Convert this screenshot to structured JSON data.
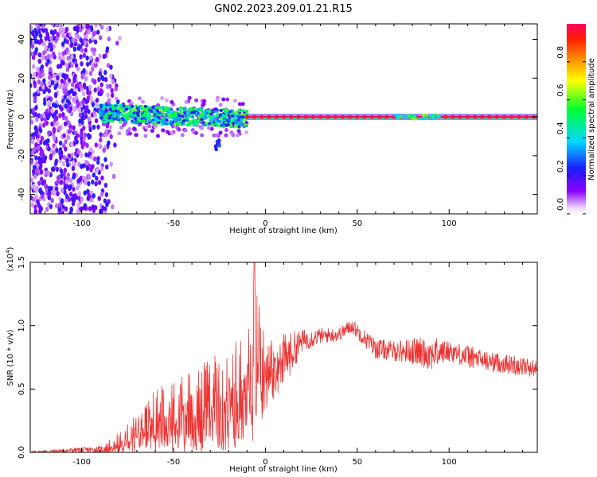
{
  "title": "GN02.2023.209.01.21.R15",
  "colors": {
    "series": "#ee3333",
    "axis": "#000000",
    "background": "#ffffff"
  },
  "chart_data": [
    {
      "type": "heatmap",
      "xlabel": "Height of straight line (km)",
      "ylabel": "Frequency (Hz)",
      "xlim": [
        -128,
        148
      ],
      "ylim": [
        -50,
        48
      ],
      "x_ticks": [
        -100,
        -50,
        0,
        50,
        100
      ],
      "x_tick_labels": [
        "-100",
        "-50",
        "0",
        "50",
        "100"
      ],
      "y_ticks": [
        -40,
        -20,
        0,
        20,
        40
      ],
      "y_tick_labels": [
        "-40",
        "-20",
        "0",
        "20",
        "40"
      ],
      "colorbar": {
        "label": "Normalized spectral amplitude",
        "range": [
          0,
          1
        ],
        "ticks": [
          0.0,
          0.2,
          0.4,
          0.6,
          0.8
        ],
        "tick_labels": [
          "0.0",
          "0.2",
          "0.4",
          "0.6",
          "0.8"
        ],
        "colormap": "rainbow (white → purple → blue → cyan → green → yellow → red)"
      },
      "features": {
        "noise_region_x": [
          -128,
          -78
        ],
        "scatter_band_x": [
          -90,
          -10
        ],
        "scatter_band_freq_hz": [
          -16,
          8
        ],
        "carrier_line_x": [
          -10,
          148
        ],
        "carrier_freq_hz": 0,
        "carrier_amplitude": 1.0
      }
    },
    {
      "type": "line",
      "xlabel": "Height of straight line (km)",
      "ylabel": "SNR (10 * v/v)",
      "y_scale_label": "(x10",
      "y_scale_exp": "4",
      "y_scale_close": ")",
      "xlim": [
        -128,
        148
      ],
      "ylim": [
        0,
        1.5
      ],
      "x_ticks": [
        -100,
        -50,
        0,
        50,
        100
      ],
      "x_tick_labels": [
        "-100",
        "-50",
        "0",
        "50",
        "100"
      ],
      "y_ticks": [
        0,
        0.5,
        1.0,
        1.5
      ],
      "y_tick_labels": [
        "0.0",
        "0.5",
        "1.0",
        "1.5"
      ],
      "series": [
        {
          "name": "SNR",
          "x": [
            -128,
            -100,
            -90,
            -80,
            -70,
            -60,
            -50,
            -40,
            -30,
            -20,
            -10,
            -6,
            0,
            10,
            20,
            30,
            40,
            47,
            60,
            70,
            80,
            90,
            100,
            110,
            120,
            130,
            140,
            148
          ],
          "baseline": [
            0.0,
            0.02,
            0.02,
            0.05,
            0.1,
            0.16,
            0.2,
            0.24,
            0.28,
            0.34,
            0.42,
            0.5,
            0.58,
            0.72,
            0.88,
            0.92,
            0.93,
            1.0,
            0.82,
            0.8,
            0.8,
            0.78,
            0.8,
            0.76,
            0.72,
            0.7,
            0.68,
            0.66
          ],
          "upper": [
            0.02,
            0.04,
            0.06,
            0.15,
            0.3,
            0.5,
            0.58,
            0.7,
            0.76,
            0.85,
            0.92,
            1.5,
            0.86,
            0.93,
            1.0,
            0.98,
            0.98,
            1.04,
            0.92,
            0.9,
            0.95,
            0.98,
            0.9,
            0.86,
            0.78,
            0.77,
            0.76,
            0.72
          ],
          "lower": [
            0.0,
            0.0,
            0.0,
            0.0,
            0.0,
            0.0,
            0.0,
            0.0,
            0.0,
            0.0,
            0.1,
            0.08,
            0.32,
            0.5,
            0.82,
            0.86,
            0.87,
            0.93,
            0.76,
            0.74,
            0.74,
            0.72,
            0.74,
            0.68,
            0.62,
            0.62,
            0.6,
            0.6
          ]
        }
      ]
    }
  ]
}
